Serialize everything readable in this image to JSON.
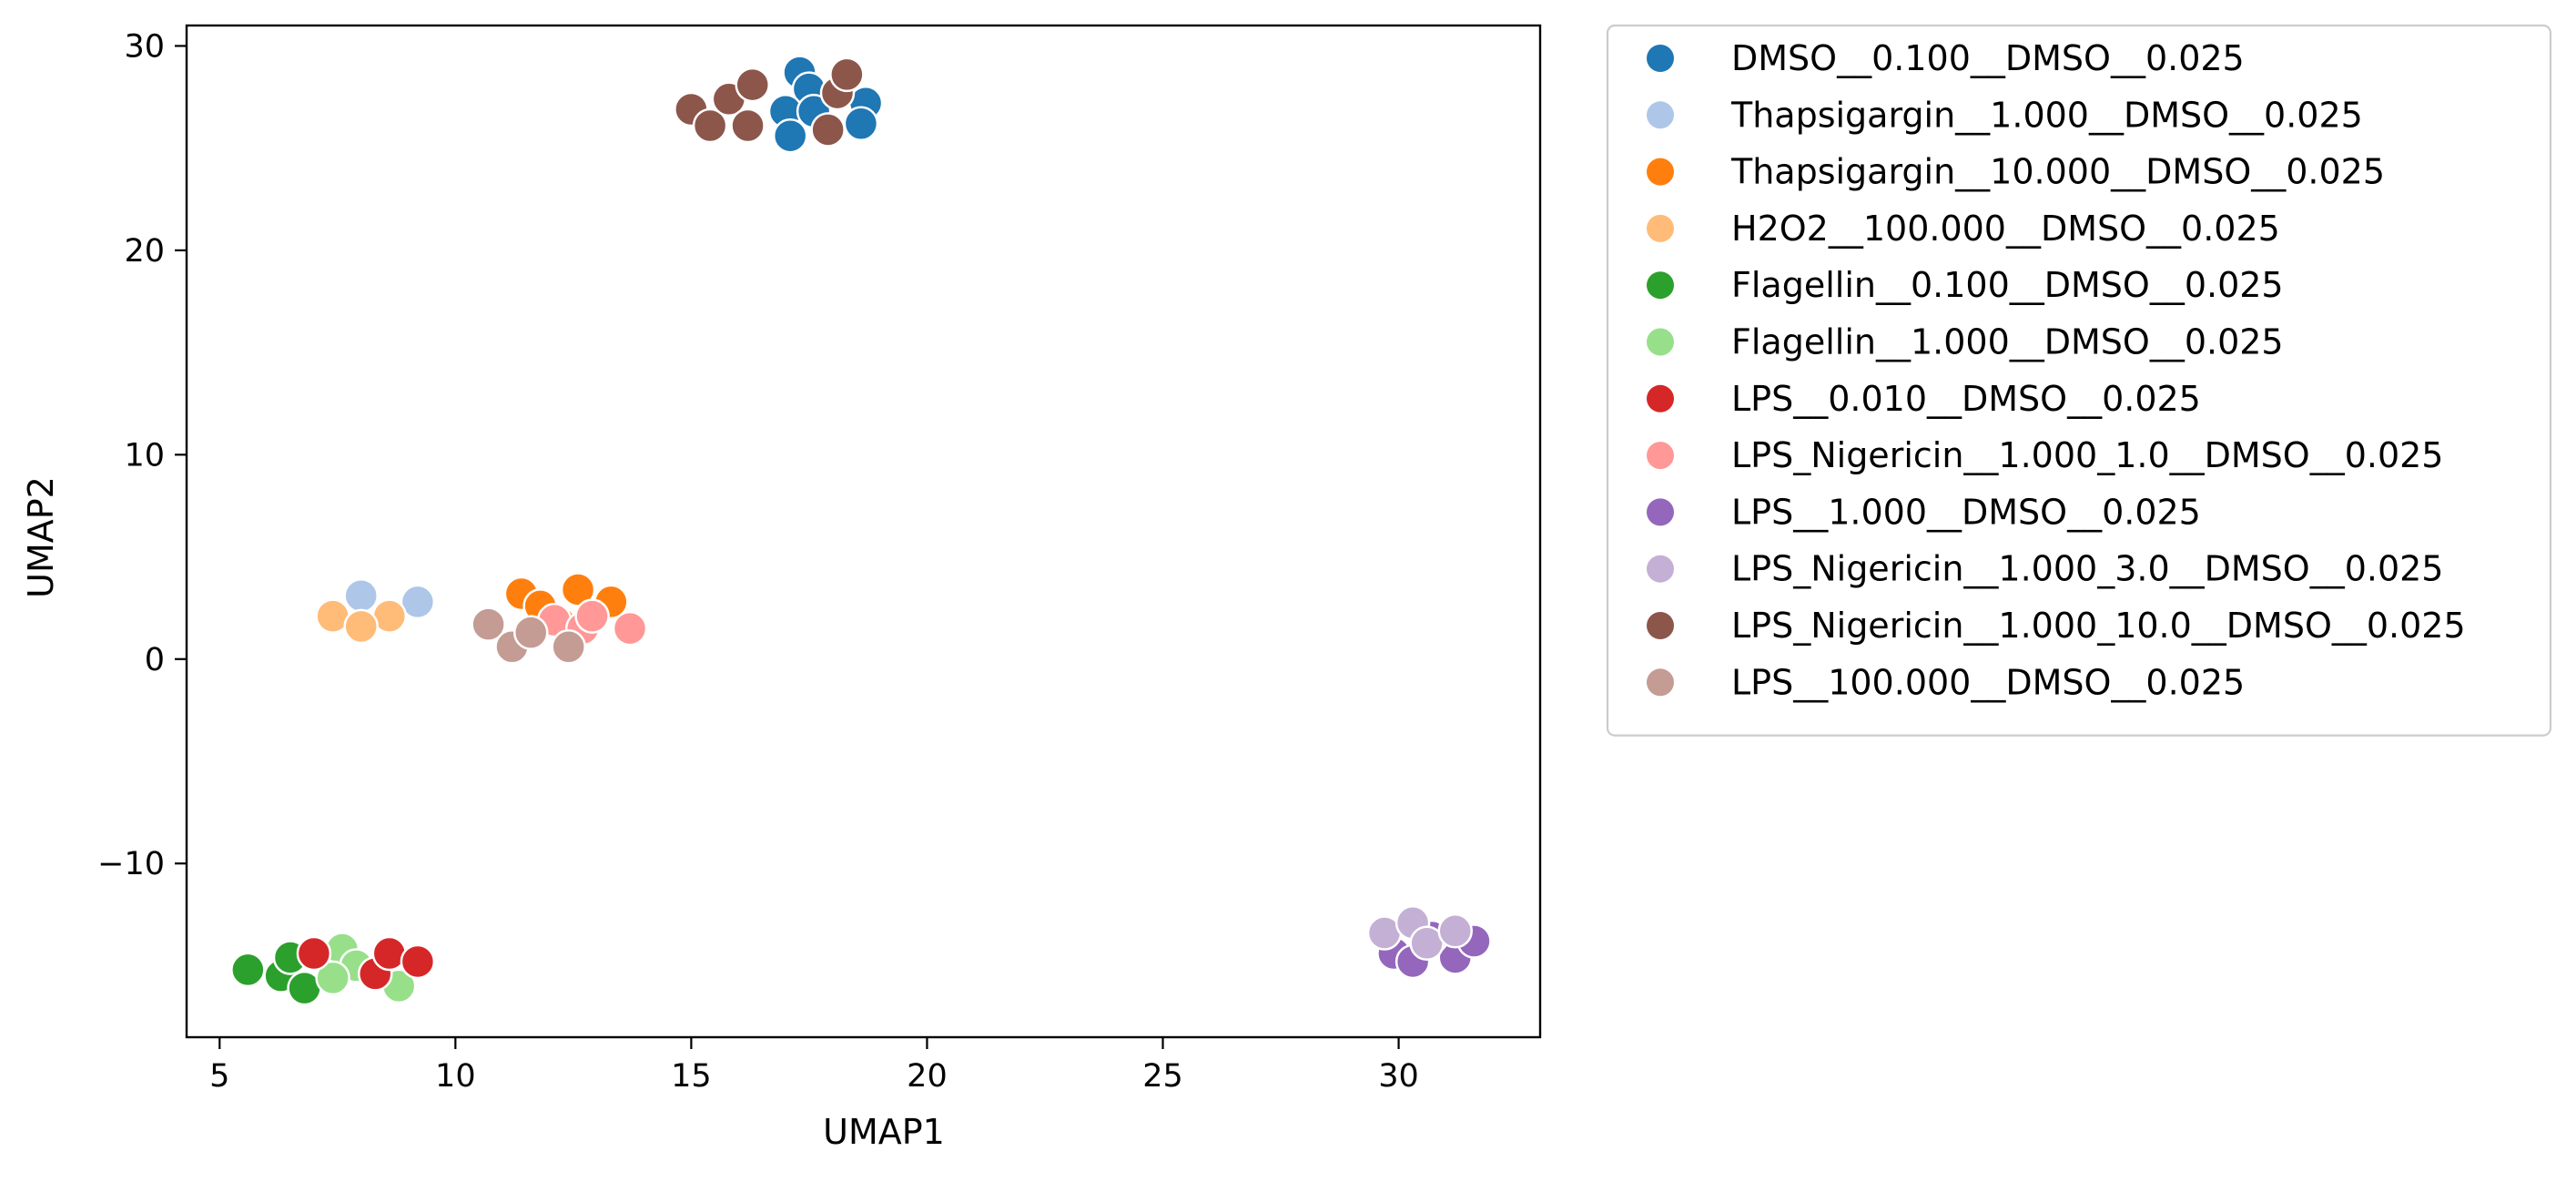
{
  "chart_data": {
    "type": "scatter",
    "title": "",
    "xlabel": "UMAP1",
    "ylabel": "UMAP2",
    "xlim": [
      4.3,
      33.0
    ],
    "ylim": [
      -18.5,
      31.0
    ],
    "xticks": [
      5,
      10,
      15,
      20,
      25,
      30
    ],
    "yticks": [
      -10,
      0,
      10,
      20,
      30
    ],
    "xtick_labels": [
      "5",
      "10",
      "15",
      "20",
      "25",
      "30"
    ],
    "ytick_labels": [
      "−10",
      "0",
      "10",
      "20",
      "30"
    ],
    "grid": false,
    "legend_position": "outside-right-top",
    "series": [
      {
        "name": "DMSO__0.100__DMSO__0.025",
        "color": "#1f77b4",
        "points": [
          [
            17.3,
            28.7
          ],
          [
            17.5,
            27.9
          ],
          [
            17.0,
            26.8
          ],
          [
            17.6,
            26.8
          ],
          [
            17.1,
            25.6
          ],
          [
            18.7,
            27.2
          ],
          [
            18.6,
            26.2
          ]
        ]
      },
      {
        "name": "Thapsigargin__1.000__DMSO__0.025",
        "color": "#aec7e8",
        "points": [
          [
            8.0,
            3.1
          ],
          [
            9.2,
            2.8
          ]
        ]
      },
      {
        "name": "Thapsigargin__10.000__DMSO__0.025",
        "color": "#ff7f0e",
        "points": [
          [
            11.4,
            3.2
          ],
          [
            11.8,
            2.6
          ],
          [
            12.6,
            3.4
          ],
          [
            13.3,
            2.8
          ],
          [
            12.2,
            1.8
          ]
        ]
      },
      {
        "name": "H2O2__100.000__DMSO__0.025",
        "color": "#ffbb78",
        "points": [
          [
            7.4,
            2.1
          ],
          [
            8.6,
            2.1
          ],
          [
            8.0,
            1.6
          ]
        ]
      },
      {
        "name": "Flagellin__0.100__DMSO__0.025",
        "color": "#2ca02c",
        "points": [
          [
            5.6,
            -15.2
          ],
          [
            6.3,
            -15.5
          ],
          [
            6.5,
            -14.6
          ],
          [
            6.8,
            -16.1
          ]
        ]
      },
      {
        "name": "Flagellin__1.000__DMSO__0.025",
        "color": "#98df8a",
        "points": [
          [
            7.6,
            -14.2
          ],
          [
            7.9,
            -15.0
          ],
          [
            7.4,
            -15.6
          ],
          [
            8.8,
            -16.0
          ]
        ]
      },
      {
        "name": "LPS__0.010__DMSO__0.025",
        "color": "#d62728",
        "points": [
          [
            7.0,
            -14.4
          ],
          [
            8.3,
            -15.4
          ],
          [
            8.6,
            -14.4
          ],
          [
            9.2,
            -14.8
          ]
        ]
      },
      {
        "name": "LPS_Nigericin__1.000_1.0__DMSO__0.025",
        "color": "#ff9896",
        "points": [
          [
            12.1,
            1.9
          ],
          [
            12.7,
            1.5
          ],
          [
            12.9,
            2.1
          ],
          [
            13.7,
            1.5
          ]
        ]
      },
      {
        "name": "LPS__1.000__DMSO__0.025",
        "color": "#9467bd",
        "points": [
          [
            29.9,
            -14.4
          ],
          [
            30.3,
            -14.8
          ],
          [
            31.2,
            -14.6
          ],
          [
            31.6,
            -13.8
          ],
          [
            30.7,
            -13.6
          ]
        ]
      },
      {
        "name": "LPS_Nigericin__1.000_3.0__DMSO__0.025",
        "color": "#c5b0d5",
        "points": [
          [
            29.7,
            -13.4
          ],
          [
            30.3,
            -12.9
          ],
          [
            30.6,
            -13.9
          ],
          [
            31.2,
            -13.3
          ]
        ]
      },
      {
        "name": "LPS_Nigericin__1.000_10.0__DMSO__0.025",
        "color": "#8c564b",
        "points": [
          [
            15.0,
            26.9
          ],
          [
            15.4,
            26.1
          ],
          [
            15.8,
            27.4
          ],
          [
            16.2,
            26.1
          ],
          [
            16.3,
            28.1
          ],
          [
            17.9,
            25.9
          ],
          [
            18.1,
            27.7
          ],
          [
            18.3,
            28.6
          ]
        ]
      },
      {
        "name": "LPS__100.000__DMSO__0.025",
        "color": "#c49c94",
        "points": [
          [
            10.7,
            1.7
          ],
          [
            11.2,
            0.6
          ],
          [
            11.6,
            1.3
          ],
          [
            12.4,
            0.6
          ]
        ]
      }
    ]
  }
}
